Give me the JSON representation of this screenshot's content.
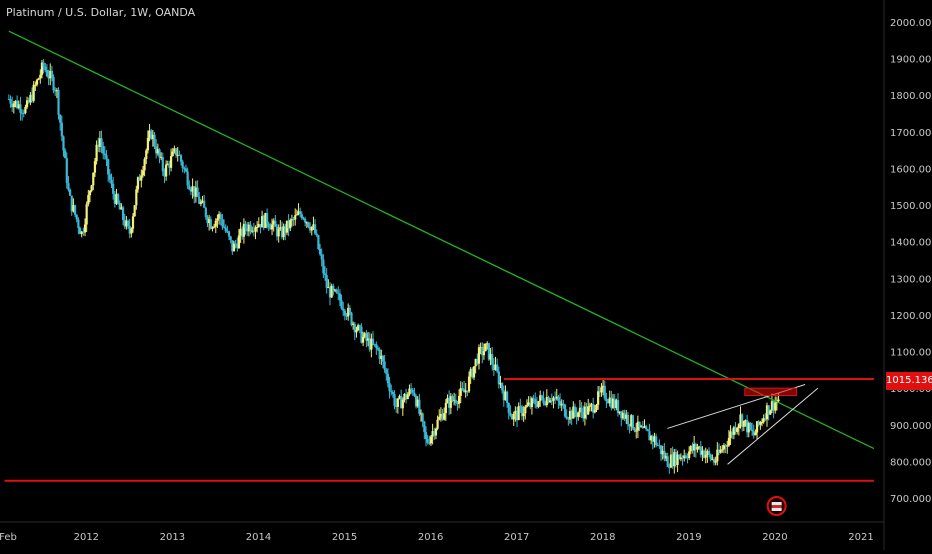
{
  "header": {
    "title": "Platinum / U.S. Dollar, 1W, OANDA"
  },
  "price_tag": {
    "value": "1015.136",
    "color": "#e01010"
  },
  "colors": {
    "background": "#000000",
    "up_candle": "#f5f07a",
    "down_candle": "#3ab8d8",
    "trendline": "#22b322",
    "level": "#e01010",
    "channel": "#d8d8d8",
    "axis_text": "#c8c8c8"
  },
  "chart_data": {
    "type": "line",
    "title": "Platinum / U.S. Dollar, 1W, OANDA",
    "xlabel": "",
    "ylabel": "",
    "x_ticks": [
      "Feb",
      "2012",
      "2013",
      "2014",
      "2015",
      "2016",
      "2017",
      "2018",
      "2019",
      "2020",
      "2021"
    ],
    "y_ticks": [
      "2000.000",
      "1900.000",
      "1800.000",
      "1700.000",
      "1600.000",
      "1500.000",
      "1400.000",
      "1300.000",
      "1200.000",
      "1100.000",
      "1000.000",
      "900.000",
      "800.000",
      "700.000"
    ],
    "ylim": [
      660,
      2040
    ],
    "xlim": [
      2011.05,
      2021.05
    ],
    "grid": false,
    "series": [
      {
        "values_x": [
          2011.1,
          2011.3,
          2011.5,
          2011.65,
          2011.8,
          2011.95,
          2012.15,
          2012.3,
          2012.5,
          2012.6,
          2012.75,
          2012.9,
          2013.05,
          2013.2,
          2013.45,
          2013.55,
          2013.7,
          2013.85,
          2014.1,
          2014.25,
          2014.5,
          2014.65,
          2014.8,
          2014.95,
          2015.2,
          2015.4,
          2015.6,
          2015.8,
          2015.95,
          2016.2,
          2016.4,
          2016.55,
          2016.65,
          2016.8,
          2016.95,
          2017.2,
          2017.4,
          2017.6,
          2017.85,
          2018.0,
          2018.2,
          2018.4,
          2018.6,
          2018.75,
          2018.95,
          2019.1,
          2019.3,
          2019.45,
          2019.6,
          2019.75,
          2019.9,
          2020.05
        ],
        "values_y": [
          1790,
          1760,
          1880,
          1820,
          1520,
          1420,
          1690,
          1540,
          1420,
          1560,
          1700,
          1590,
          1650,
          1560,
          1450,
          1470,
          1380,
          1440,
          1460,
          1420,
          1480,
          1430,
          1270,
          1240,
          1140,
          1100,
          950,
          1000,
          850,
          960,
          990,
          1090,
          1110,
          1020,
          920,
          960,
          980,
          930,
          940,
          990,
          940,
          890,
          860,
          800,
          820,
          840,
          800,
          860,
          920,
          870,
          940,
          970
        ]
      }
    ],
    "annotations": {
      "green_trendline": {
        "x": [
          2011.1,
          2021.15
        ],
        "y": [
          1975,
          835
        ]
      },
      "resistance_level": {
        "x": [
          2016.85,
          2021.15
        ],
        "y": [
          1025,
          1025
        ]
      },
      "support_level": {
        "x": [
          2011.05,
          2021.15
        ],
        "y": [
          747,
          747
        ]
      },
      "supply_zone": {
        "x": [
          2019.65,
          2020.25
        ],
        "y": [
          1000,
          980
        ]
      },
      "wedge_upper": {
        "x": [
          2018.75,
          2020.35
        ],
        "y": [
          890,
          1010
        ]
      },
      "wedge_lower": {
        "x": [
          2019.45,
          2020.5
        ],
        "y": [
          792,
          1000
        ]
      },
      "event_marker_x": 2020.02
    }
  }
}
